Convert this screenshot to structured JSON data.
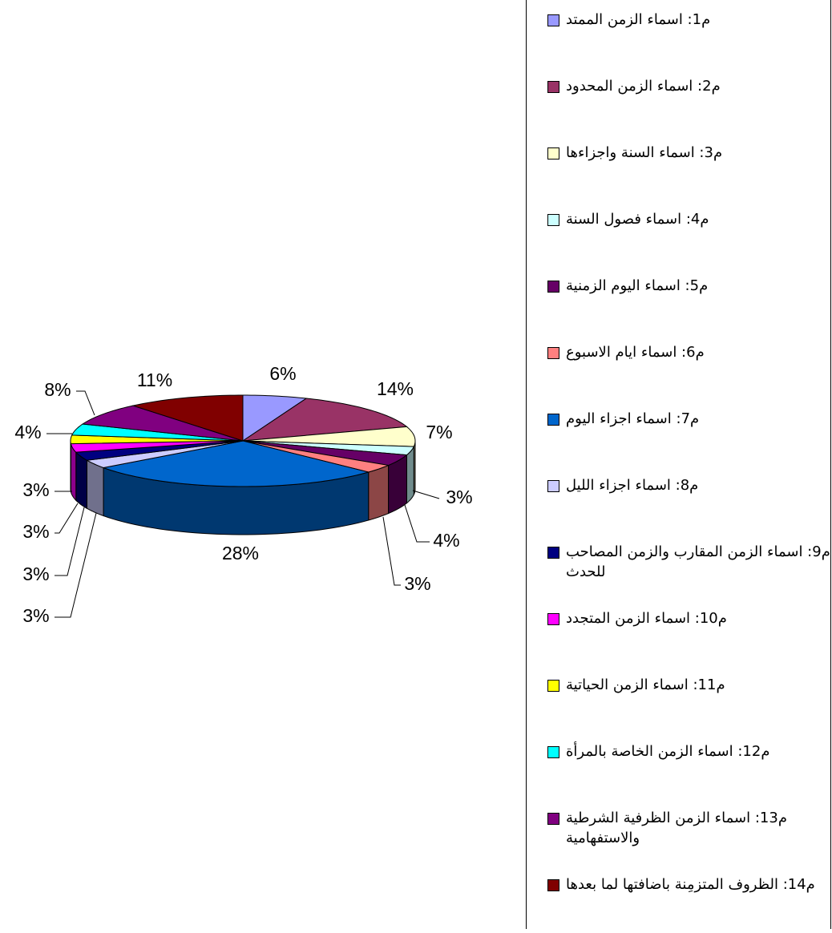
{
  "chart_data": {
    "type": "pie",
    "categories": [
      "م1: اسماء الزمن الممتد",
      "م2: اسماء الزمن المحدود",
      "م3: اسماء السنة واجزاءها",
      "م4: اسماء فصول السنة",
      "م5: اسماء اليوم الزمنية",
      "م6: اسماء ايام الاسبوع",
      "م7: اسماء اجزاء اليوم",
      "م8: اسماء اجزاء الليل",
      "م9: اسماء الزمن المقارب والزمن المصاحب للحدث",
      "م10: اسماء الزمن المتجدد",
      "م11: اسماء الزمن الحياتية",
      "م12: اسماء الزمن الخاصة بالمرأة",
      "م13: اسماء الزمن الظرفية الشرطية والاستفهامية",
      "م14: الظروف المتزمِنة باضافتها لما بعدها"
    ],
    "values": [
      6,
      14,
      7,
      3,
      4,
      3,
      28,
      3,
      3,
      3,
      3,
      4,
      8,
      11
    ],
    "value_labels": [
      "6%",
      "14%",
      "7%",
      "3%",
      "4%",
      "3%",
      "28%",
      "3%",
      "3%",
      "3%",
      "3%",
      "4%",
      "8%",
      "11%"
    ],
    "colors": [
      "#9999ff",
      "#993366",
      "#ffffcc",
      "#ccffff",
      "#660066",
      "#ff8080",
      "#0066cc",
      "#ccccff",
      "#000080",
      "#ff00ff",
      "#ffff00",
      "#00ffff",
      "#800080",
      "#800000"
    ],
    "legend": "right"
  }
}
